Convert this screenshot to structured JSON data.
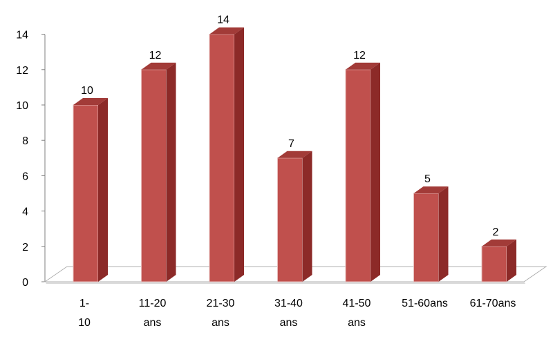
{
  "chart_data": {
    "type": "bar",
    "categories": [
      [
        "1-",
        "10"
      ],
      [
        "11-20",
        "ans"
      ],
      [
        "21-30",
        "ans"
      ],
      [
        "31-40",
        "ans"
      ],
      [
        "41-50",
        "ans"
      ],
      [
        "51-60ans"
      ],
      [
        "61-70ans"
      ]
    ],
    "values": [
      10,
      12,
      14,
      7,
      12,
      5,
      2
    ],
    "data_labels": [
      "10",
      "12",
      "14",
      "7",
      "12",
      "5",
      "2"
    ],
    "y_ticks": [
      "0",
      "2",
      "4",
      "6",
      "8",
      "10",
      "12",
      "14"
    ],
    "ylim": [
      0,
      14
    ],
    "title": "",
    "xlabel": "",
    "ylabel": "",
    "grid": false,
    "legend": "none",
    "style": "3d-column",
    "colors": {
      "bar_front": "#c0504d",
      "bar_side": "#8c2a28",
      "bar_top": "#a23b38",
      "floor": "#ffffff",
      "axis": "#7f7f7f"
    }
  }
}
